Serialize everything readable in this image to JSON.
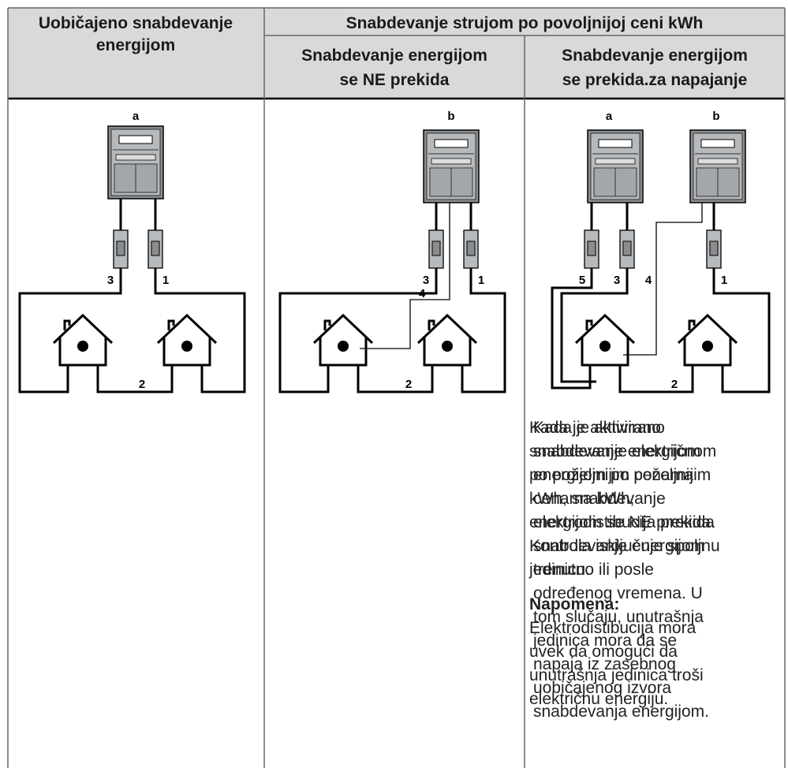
{
  "header": {
    "col1": [
      "Uobičajeno snabdevanje",
      "energijom"
    ],
    "group": "Snabdevanje strujom po povoljnijoj ceni kWh",
    "col2": [
      "Snabdevanje energijom",
      "se NE prekida"
    ],
    "col3": [
      "Snabdevanje energijom",
      "se prekida.za napajanje"
    ]
  },
  "diagrams": {
    "d1": {
      "meter": "a",
      "labels": [
        "3",
        "1",
        "2"
      ]
    },
    "d2": {
      "meter": "b",
      "labels": [
        "3",
        "1",
        "4",
        "2"
      ]
    },
    "d3": {
      "meters": [
        "a",
        "b"
      ],
      "labels": [
        "5",
        "3",
        "4",
        "1",
        "2"
      ]
    }
  },
  "col2_text": {
    "lines": [
      "Kada je aktivirano",
      "snabdevanje energijom",
      "po poželjnijim cenama",
      "kWh, snabdevanje",
      "energijom se NE prekida.",
      "Kontrola isključuje spoljnu",
      "jedinicu."
    ],
    "note_title": "Napomena:",
    "note_lines": [
      "Elektrodistibucija mora",
      "uvek da omogući da",
      "unutrašnja jedinica troši",
      "električnu energiju."
    ]
  },
  "col3_text": {
    "lines": [
      "Kada je aktivirano",
      "snabdevanje električnom",
      "energijom po poželjnijim",
      "cenama kWh,",
      "elektrodistibucija prekida",
      "snabdevanje energijom",
      "trenutno ili posle",
      "određenog vremena. U",
      "tom slučaju, unutrašnja",
      "jedinica mora da se",
      "napaja iz zasebnog",
      "uobičajenog izvora",
      "snabdevanja energijom."
    ]
  }
}
